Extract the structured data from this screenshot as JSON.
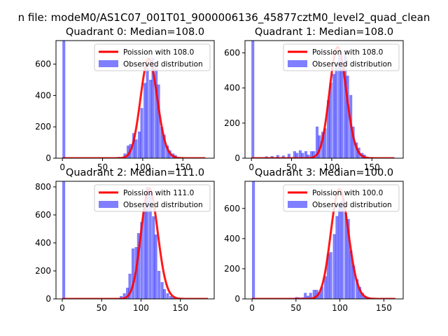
{
  "figure": {
    "suptitle": "n file: modeM0/AS1C07_001T01_9000006136_45877cztM0_level2_quad_clean"
  },
  "colors": {
    "bar": "#0000ff",
    "bar_alpha": 0.5,
    "curve": "#ff0000",
    "axis": "#000000"
  },
  "chart_data": [
    {
      "type": "bar",
      "title": "Quadrant 0: Median=108.0",
      "xlim": [
        -8,
        189
      ],
      "ylim": [
        0,
        750
      ],
      "xticks": [
        0,
        50,
        100,
        150
      ],
      "yticks": [
        0,
        200,
        400,
        600
      ],
      "legend": {
        "position": "upper-right",
        "entries": [
          "Poission with 108.0",
          "Observed distribution"
        ]
      },
      "bin_width": 3.55,
      "observed_bins": [
        [
          0,
          750
        ],
        [
          62,
          4
        ],
        [
          66,
          6
        ],
        [
          69,
          8
        ],
        [
          73,
          6
        ],
        [
          76,
          30
        ],
        [
          80,
          80
        ],
        [
          83,
          90
        ],
        [
          87,
          160
        ],
        [
          90,
          120
        ],
        [
          94,
          170
        ],
        [
          97,
          320
        ],
        [
          101,
          480
        ],
        [
          104,
          600
        ],
        [
          108,
          500
        ],
        [
          111,
          640
        ],
        [
          115,
          590
        ],
        [
          118,
          470
        ],
        [
          122,
          200
        ],
        [
          125,
          150
        ],
        [
          129,
          80
        ],
        [
          132,
          50
        ],
        [
          136,
          30
        ],
        [
          139,
          20
        ]
      ],
      "poisson": {
        "lambda": 108.0,
        "scale": 633,
        "x_range": [
          0,
          178
        ]
      }
    },
    {
      "type": "bar",
      "title": "Quadrant 1: Median=108.0",
      "xlim": [
        -8,
        189
      ],
      "ylim": [
        0,
        670
      ],
      "xticks": [
        0,
        50,
        100,
        150
      ],
      "yticks": [
        0,
        200,
        400,
        600
      ],
      "legend": {
        "position": "upper-right",
        "entries": [
          "Poission with 108.0",
          "Observed distribution"
        ]
      },
      "bin_width": 3.55,
      "observed_bins": [
        [
          0,
          670
        ],
        [
          10,
          6
        ],
        [
          17,
          10
        ],
        [
          24,
          12
        ],
        [
          31,
          18
        ],
        [
          38,
          15
        ],
        [
          45,
          25
        ],
        [
          52,
          40
        ],
        [
          55,
          30
        ],
        [
          59,
          45
        ],
        [
          62,
          30
        ],
        [
          66,
          40
        ],
        [
          69,
          20
        ],
        [
          73,
          40
        ],
        [
          76,
          40
        ],
        [
          80,
          180
        ],
        [
          83,
          130
        ],
        [
          87,
          150
        ],
        [
          90,
          170
        ],
        [
          94,
          330
        ],
        [
          97,
          430
        ],
        [
          101,
          480
        ],
        [
          104,
          530
        ],
        [
          108,
          590
        ],
        [
          111,
          520
        ],
        [
          115,
          600
        ],
        [
          118,
          470
        ],
        [
          122,
          360
        ],
        [
          125,
          180
        ],
        [
          129,
          90
        ],
        [
          132,
          60
        ],
        [
          136,
          30
        ],
        [
          139,
          20
        ]
      ],
      "poisson": {
        "lambda": 108.0,
        "scale": 633,
        "x_range": [
          0,
          178
        ]
      }
    },
    {
      "type": "bar",
      "title": "Quadrant 2: Median=111.0",
      "xlim": [
        -8,
        193
      ],
      "ylim": [
        0,
        840
      ],
      "xticks": [
        0,
        50,
        100,
        150
      ],
      "yticks": [
        0,
        200,
        400,
        600,
        800
      ],
      "legend": {
        "position": "upper-right",
        "entries": [
          "Poission with 111.0",
          "Observed distribution"
        ]
      },
      "bin_width": 3.67,
      "observed_bins": [
        [
          0,
          840
        ],
        [
          66,
          5
        ],
        [
          73,
          20
        ],
        [
          77,
          40
        ],
        [
          81,
          80
        ],
        [
          84,
          180
        ],
        [
          88,
          360
        ],
        [
          92,
          370
        ],
        [
          95,
          470
        ],
        [
          99,
          550
        ],
        [
          103,
          680
        ],
        [
          106,
          800
        ],
        [
          110,
          770
        ],
        [
          114,
          590
        ],
        [
          117,
          460
        ],
        [
          121,
          200
        ],
        [
          125,
          120
        ],
        [
          128,
          70
        ],
        [
          132,
          40
        ],
        [
          136,
          20
        ],
        [
          139,
          10
        ]
      ],
      "poisson": {
        "lambda": 111.0,
        "scale": 789,
        "x_range": [
          0,
          185
        ]
      }
    },
    {
      "type": "bar",
      "title": "Quadrant 3: Median=100.0",
      "xlim": [
        -8,
        172
      ],
      "ylim": [
        0,
        780
      ],
      "xticks": [
        0,
        50,
        100,
        150
      ],
      "yticks": [
        0,
        200,
        400,
        600
      ],
      "legend": {
        "position": "upper-right",
        "entries": [
          "Poission with 100.0",
          "Observed distribution"
        ]
      },
      "bin_width": 3.27,
      "observed_bins": [
        [
          0,
          780
        ],
        [
          39,
          4
        ],
        [
          46,
          6
        ],
        [
          49,
          12
        ],
        [
          52,
          10
        ],
        [
          56,
          10
        ],
        [
          59,
          40
        ],
        [
          62,
          20
        ],
        [
          65,
          40
        ],
        [
          69,
          60
        ],
        [
          72,
          60
        ],
        [
          75,
          40
        ],
        [
          78,
          80
        ],
        [
          82,
          150
        ],
        [
          85,
          300
        ],
        [
          88,
          310
        ],
        [
          92,
          430
        ],
        [
          95,
          550
        ],
        [
          98,
          620
        ],
        [
          101,
          650
        ],
        [
          105,
          570
        ],
        [
          108,
          530
        ],
        [
          111,
          320
        ],
        [
          114,
          220
        ],
        [
          118,
          130
        ],
        [
          121,
          80
        ],
        [
          124,
          40
        ],
        [
          127,
          20
        ],
        [
          131,
          10
        ]
      ],
      "poisson": {
        "lambda": 100.0,
        "scale": 728,
        "x_range": [
          0,
          163
        ]
      }
    }
  ]
}
